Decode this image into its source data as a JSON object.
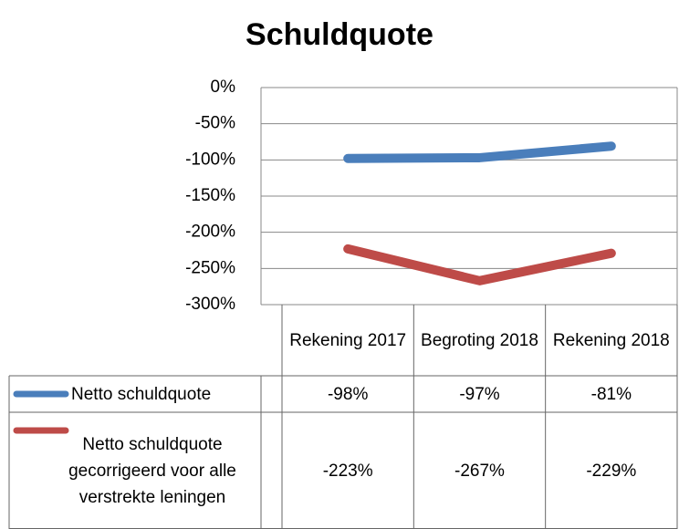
{
  "chart_data": {
    "type": "line",
    "title": "Schuldquote",
    "categories": [
      "Rekening 2017",
      "Begroting 2018",
      "Rekening 2018"
    ],
    "series": [
      {
        "name": "Netto schuldquote",
        "color": "#4a7ebb",
        "values": [
          -98,
          -97,
          -81
        ],
        "value_labels": [
          "-98%",
          "-97%",
          "-81%"
        ]
      },
      {
        "name": "Netto schuldquote gecorrigeerd voor alle verstrekte leningen",
        "color": "#be4b48",
        "values": [
          -223,
          -267,
          -229
        ],
        "value_labels": [
          "-223%",
          "-267%",
          "-229%"
        ]
      }
    ],
    "ylim": [
      -300,
      0
    ],
    "yticks": [
      {
        "value": 0,
        "label": "0%"
      },
      {
        "value": -50,
        "label": "-50%"
      },
      {
        "value": -100,
        "label": "-100%"
      },
      {
        "value": -150,
        "label": "-150%"
      },
      {
        "value": -200,
        "label": "-200%"
      },
      {
        "value": -250,
        "label": "-250%"
      },
      {
        "value": -300,
        "label": "-300%"
      }
    ],
    "grid": true,
    "data_table": true
  }
}
